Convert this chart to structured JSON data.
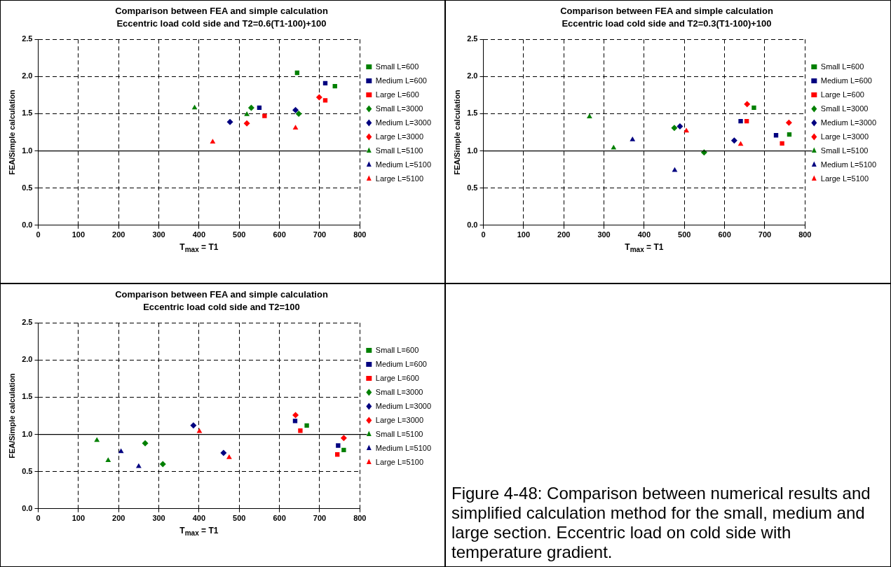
{
  "chart_data": [
    {
      "type": "scatter",
      "title": "Comparison between FEA and simple calculation",
      "subtitle": "Eccentric load cold side and T2=0.6(T1-100)+100",
      "xlabel": "T$_{max}$ = T1",
      "ylabel": "FEA/Simple calculation",
      "xlim": [
        0,
        800
      ],
      "xticks": [
        0,
        100,
        200,
        300,
        400,
        500,
        600,
        700,
        800
      ],
      "ylim": [
        0,
        2.5
      ],
      "yticks": [
        {
          "value": 0,
          "label": "0.0"
        },
        {
          "value": 0.5,
          "label": "0.5"
        },
        {
          "value": 1,
          "label": "1.0"
        },
        {
          "value": 1.5,
          "label": "1.5"
        },
        {
          "value": 2,
          "label": "2.0"
        },
        {
          "value": 2.5,
          "label": "2.5"
        }
      ],
      "grid": true,
      "legend": "right",
      "ref_lines": [
        {
          "axis": "y",
          "value": 1,
          "color": "#000000",
          "line_style": "solid"
        }
      ],
      "series": [
        {
          "name": "Small L=600",
          "color": "#008000",
          "marker": "square",
          "x": [
            644,
            738
          ],
          "values": [
            2.05,
            1.87
          ]
        },
        {
          "name": "Medium L=600",
          "color": "#000080",
          "marker": "square",
          "x": [
            550,
            714
          ],
          "values": [
            1.58,
            1.91
          ]
        },
        {
          "name": "Large L=600",
          "color": "#ff0000",
          "marker": "square",
          "x": [
            563,
            714
          ],
          "values": [
            1.47,
            1.68
          ]
        },
        {
          "name": "Small L=3000",
          "color": "#008000",
          "marker": "diamond",
          "x": [
            530,
            648
          ],
          "values": [
            1.58,
            1.5
          ]
        },
        {
          "name": "Medium L=3000",
          "color": "#000080",
          "marker": "diamond",
          "x": [
            477,
            640
          ],
          "values": [
            1.39,
            1.55
          ]
        },
        {
          "name": "Large L=3000",
          "color": "#ff0000",
          "marker": "diamond",
          "x": [
            519,
            699
          ],
          "values": [
            1.37,
            1.72
          ]
        },
        {
          "name": "Small L=5100",
          "color": "#008000",
          "marker": "triangle",
          "x": [
            389,
            519
          ],
          "values": [
            1.58,
            1.49
          ]
        },
        {
          "name": "Medium L=5100",
          "color": "#000080",
          "marker": "triangle"
        },
        {
          "name": "Large L=5100",
          "color": "#ff0000",
          "marker": "triangle",
          "x": [
            434,
            640
          ],
          "values": [
            1.12,
            1.31
          ]
        }
      ]
    },
    {
      "type": "scatter",
      "title": "Comparison between FEA and simple calculation",
      "subtitle": "Eccentric load cold side and T2=0.3(T1-100)+100",
      "xlabel": "T$_{max}$ = T1",
      "ylabel": "FEA/Simple calculation",
      "xlim": [
        0,
        800
      ],
      "xticks": [
        0,
        100,
        200,
        300,
        400,
        500,
        600,
        700,
        800
      ],
      "ylim": [
        0,
        2.5
      ],
      "yticks": [
        {
          "value": 0,
          "label": "0.0"
        },
        {
          "value": 0.5,
          "label": "0.5"
        },
        {
          "value": 1,
          "label": "1.0"
        },
        {
          "value": 1.5,
          "label": "1.5"
        },
        {
          "value": 2,
          "label": "2.0"
        },
        {
          "value": 2.5,
          "label": "2.5"
        }
      ],
      "grid": true,
      "legend": "right",
      "ref_lines": [
        {
          "axis": "y",
          "value": 1,
          "color": "#000000",
          "line_style": "solid"
        }
      ],
      "series": [
        {
          "name": "Small L=600",
          "color": "#008000",
          "marker": "square",
          "x": [
            673,
            761
          ],
          "values": [
            1.58,
            1.22
          ]
        },
        {
          "name": "Medium L=600",
          "color": "#000080",
          "marker": "square",
          "x": [
            640,
            728
          ],
          "values": [
            1.4,
            1.21
          ]
        },
        {
          "name": "Large L=600",
          "color": "#ff0000",
          "marker": "square",
          "x": [
            655,
            743
          ],
          "values": [
            1.4,
            1.1
          ]
        },
        {
          "name": "Small L=3000",
          "color": "#008000",
          "marker": "diamond",
          "x": [
            475,
            549
          ],
          "values": [
            1.31,
            0.98
          ]
        },
        {
          "name": "Medium L=3000",
          "color": "#000080",
          "marker": "diamond",
          "x": [
            489,
            624
          ],
          "values": [
            1.33,
            1.14
          ]
        },
        {
          "name": "Large L=3000",
          "color": "#ff0000",
          "marker": "diamond",
          "x": [
            656,
            760
          ],
          "values": [
            1.63,
            1.38
          ]
        },
        {
          "name": "Small L=5100",
          "color": "#008000",
          "marker": "triangle",
          "x": [
            264,
            324
          ],
          "values": [
            1.46,
            1.04
          ]
        },
        {
          "name": "Medium L=5100",
          "color": "#000080",
          "marker": "triangle",
          "x": [
            371,
            476
          ],
          "values": [
            1.15,
            0.74
          ]
        },
        {
          "name": "Large L=5100",
          "color": "#ff0000",
          "marker": "triangle",
          "x": [
            505,
            640
          ],
          "values": [
            1.27,
            1.09
          ]
        }
      ]
    },
    {
      "type": "scatter",
      "title": "Comparison between FEA and simple calculation",
      "subtitle": "Eccentric load cold side and T2=100",
      "xlabel": "T$_{max}$ = T1",
      "ylabel": "FEA/Simple calculation",
      "xlim": [
        0,
        800
      ],
      "xticks": [
        0,
        100,
        200,
        300,
        400,
        500,
        600,
        700,
        800
      ],
      "ylim": [
        0,
        2.5
      ],
      "yticks": [
        {
          "value": 0,
          "label": "0.0"
        },
        {
          "value": 0.5,
          "label": "0.5"
        },
        {
          "value": 1,
          "label": "1.0"
        },
        {
          "value": 1.5,
          "label": "1.5"
        },
        {
          "value": 2,
          "label": "2.0"
        },
        {
          "value": 2.5,
          "label": "2.5"
        }
      ],
      "grid": true,
      "legend": "right",
      "ref_lines": [
        {
          "axis": "y",
          "value": 1,
          "color": "#000000",
          "line_style": "solid"
        }
      ],
      "series": [
        {
          "name": "Small L=600",
          "color": "#008000",
          "marker": "square",
          "x": [
            668,
            760
          ],
          "values": [
            1.12,
            0.79
          ]
        },
        {
          "name": "Medium L=600",
          "color": "#000080",
          "marker": "square",
          "x": [
            639,
            746
          ],
          "values": [
            1.18,
            0.85
          ]
        },
        {
          "name": "Large L=600",
          "color": "#ff0000",
          "marker": "square",
          "x": [
            652,
            744
          ],
          "values": [
            1.05,
            0.73
          ]
        },
        {
          "name": "Small L=3000",
          "color": "#008000",
          "marker": "diamond",
          "x": [
            266,
            310
          ],
          "values": [
            0.88,
            0.6
          ]
        },
        {
          "name": "Medium L=3000",
          "color": "#000080",
          "marker": "diamond",
          "x": [
            386,
            461
          ],
          "values": [
            1.12,
            0.75
          ]
        },
        {
          "name": "Large L=3000",
          "color": "#ff0000",
          "marker": "diamond",
          "x": [
            640,
            760
          ],
          "values": [
            1.26,
            0.95
          ]
        },
        {
          "name": "Small L=5100",
          "color": "#008000",
          "marker": "triangle",
          "x": [
            146,
            174
          ],
          "values": [
            0.92,
            0.65
          ]
        },
        {
          "name": "Medium L=5100",
          "color": "#000080",
          "marker": "triangle",
          "x": [
            206,
            250
          ],
          "values": [
            0.77,
            0.57
          ]
        },
        {
          "name": "Large L=5100",
          "color": "#ff0000",
          "marker": "triangle",
          "x": [
            401,
            475
          ],
          "values": [
            1.04,
            0.69
          ]
        }
      ]
    },
    {
      "type": "other",
      "annotations": [
        "Figure 4-48: Comparison between numerical results and simplified calculation method for the small, medium and large section. Eccentric load on cold side with temperature gradient."
      ]
    }
  ]
}
